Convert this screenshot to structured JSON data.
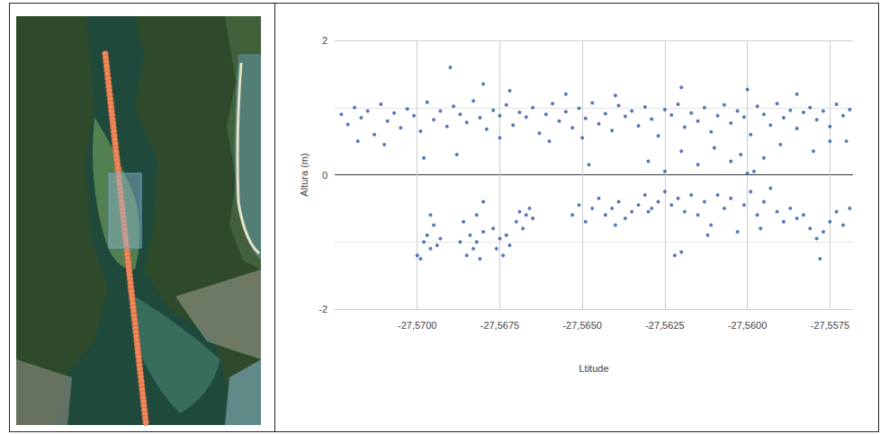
{
  "chart_data": {
    "type": "scatter",
    "x_label": "Ltitude",
    "y_label": "Altura (m)",
    "color": "#2a56a6",
    "marker": "circle",
    "grid": true,
    "xlim": [
      -27.5725,
      -27.5568
    ],
    "xticks": [
      {
        "value": -27.57,
        "label": "-27,5700"
      },
      {
        "value": -27.5675,
        "label": "-27,5675"
      },
      {
        "value": -27.565,
        "label": "-27,5650"
      },
      {
        "value": -27.5625,
        "label": "-27,5625"
      },
      {
        "value": -27.56,
        "label": "-27,5600"
      },
      {
        "value": -27.5575,
        "label": "-27,5575"
      }
    ],
    "ylim": [
      -2,
      2
    ],
    "yticks": [
      -2,
      0,
      2
    ],
    "x": [
      -27.5723,
      -27.5721,
      -27.5719,
      -27.5717,
      -27.5715,
      -27.5713,
      -27.5711,
      -27.5709,
      -27.5707,
      -27.5705,
      -27.5703,
      -27.5701,
      -27.5699,
      -27.5697,
      -27.5695,
      -27.5693,
      -27.5691,
      -27.5689,
      -27.5687,
      -27.5685,
      -27.5683,
      -27.5681,
      -27.5679,
      -27.5677,
      -27.5675,
      -27.5673,
      -27.5671,
      -27.5669,
      -27.5667,
      -27.5665,
      -27.5663,
      -27.5661,
      -27.5659,
      -27.5657,
      -27.5655,
      -27.5653,
      -27.5651,
      -27.5649,
      -27.5647,
      -27.5645,
      -27.5643,
      -27.5641,
      -27.5639,
      -27.5637,
      -27.5635,
      -27.5633,
      -27.5631,
      -27.5629,
      -27.5627,
      -27.5625,
      -27.5623,
      -27.5621,
      -27.5619,
      -27.5617,
      -27.5615,
      -27.5613,
      -27.5611,
      -27.5609,
      -27.5607,
      -27.5605,
      -27.5603,
      -27.5601,
      -27.5599,
      -27.5597,
      -27.5595,
      -27.5593,
      -27.5591,
      -27.5589,
      -27.5587,
      -27.5585,
      -27.5583,
      -27.5581,
      -27.5579,
      -27.5577,
      -27.5575,
      -27.5573,
      -27.5571,
      -27.5569,
      -27.569,
      -27.568,
      -27.5672,
      -27.5655,
      -27.564,
      -27.562,
      -27.56,
      -27.5585,
      -27.5718,
      -27.571,
      -27.5698,
      -27.5688,
      -27.5675,
      -27.566,
      -27.565,
      -27.5648,
      -27.563,
      -27.5625,
      -27.562,
      -27.5615,
      -27.561,
      -27.5605,
      -27.5602,
      -27.56,
      -27.5598,
      -27.5595,
      -27.559,
      -27.558,
      -27.5575,
      -27.557,
      -27.57,
      -27.5699,
      -27.5698,
      -27.5697,
      -27.5696,
      -27.5695,
      -27.5694,
      -27.5693,
      -27.5696,
      -27.5687,
      -27.5686,
      -27.5685,
      -27.5684,
      -27.5683,
      -27.5682,
      -27.5681,
      -27.568,
      -27.568,
      -27.5682,
      -27.5677,
      -27.5676,
      -27.5675,
      -27.5674,
      -27.5673,
      -27.5672,
      -27.567,
      -27.5669,
      -27.5668,
      -27.5667,
      -27.5666,
      -27.5665,
      -27.5653,
      -27.5651,
      -27.5649,
      -27.5647,
      -27.5645,
      -27.5643,
      -27.5641,
      -27.5639,
      -27.5637,
      -27.5635,
      -27.5633,
      -27.5631,
      -27.5629,
      -27.5627,
      -27.5625,
      -27.5623,
      -27.5621,
      -27.562,
      -27.5619,
      -27.5617,
      -27.5615,
      -27.5613,
      -27.5611,
      -27.5609,
      -27.5607,
      -27.5605,
      -27.5603,
      -27.5601,
      -27.5599,
      -27.5597,
      -27.5595,
      -27.5593,
      -27.5591,
      -27.5589,
      -27.5587,
      -27.5585,
      -27.5583,
      -27.5581,
      -27.5579,
      -27.5578,
      -27.5577,
      -27.5575,
      -27.5573,
      -27.5571,
      -27.5569,
      -27.5622,
      -27.5612,
      -27.5596,
      -27.564,
      -27.563
    ],
    "values": [
      0.9,
      0.75,
      1.0,
      0.85,
      0.95,
      0.6,
      1.05,
      0.8,
      0.92,
      0.7,
      0.98,
      0.88,
      0.65,
      1.08,
      0.82,
      0.95,
      0.72,
      1.02,
      0.9,
      0.78,
      1.1,
      0.85,
      0.68,
      0.96,
      0.88,
      1.04,
      0.74,
      0.93,
      0.86,
      1.0,
      0.62,
      0.9,
      1.06,
      0.8,
      0.94,
      0.7,
      0.99,
      0.84,
      1.07,
      0.76,
      0.91,
      0.66,
      1.03,
      0.87,
      0.95,
      0.73,
      1.01,
      0.83,
      0.58,
      0.97,
      0.89,
      1.05,
      0.71,
      0.92,
      0.8,
      1.0,
      0.64,
      0.88,
      1.04,
      0.77,
      0.95,
      0.86,
      0.6,
      1.02,
      0.9,
      0.74,
      1.06,
      0.85,
      0.96,
      0.69,
      0.93,
      1.0,
      0.82,
      0.95,
      0.72,
      1.05,
      0.88,
      0.97,
      1.6,
      1.35,
      1.25,
      1.2,
      1.18,
      1.3,
      1.27,
      1.2,
      0.5,
      0.45,
      0.25,
      0.3,
      0.55,
      0.5,
      0.55,
      0.15,
      0.2,
      0.05,
      0.35,
      0.15,
      0.4,
      0.2,
      0.3,
      0.02,
      0.05,
      0.25,
      0.45,
      0.35,
      0.5,
      0.5,
      -1.2,
      -1.25,
      -1.0,
      -0.9,
      -1.1,
      -0.75,
      -1.05,
      -0.95,
      -0.6,
      -1.0,
      -0.7,
      -1.2,
      -0.9,
      -1.1,
      -0.6,
      -1.25,
      -0.85,
      -0.4,
      -1.0,
      -0.8,
      -1.1,
      -0.95,
      -1.2,
      -0.9,
      -1.05,
      -0.7,
      -0.55,
      -0.8,
      -0.6,
      -0.5,
      -0.65,
      -0.6,
      -0.45,
      -0.7,
      -0.5,
      -0.35,
      -0.6,
      -0.5,
      -0.4,
      -0.65,
      -0.55,
      -0.45,
      -0.3,
      -0.5,
      -0.4,
      -0.25,
      -0.45,
      -0.35,
      -1.15,
      -0.55,
      -0.3,
      -0.6,
      -0.4,
      -0.75,
      -0.3,
      -0.5,
      -0.35,
      -0.85,
      -0.45,
      -0.25,
      -0.6,
      -0.4,
      -0.2,
      -0.55,
      -0.7,
      -0.5,
      -0.65,
      -0.6,
      -0.8,
      -0.95,
      -1.25,
      -0.85,
      -0.7,
      -0.55,
      -0.75,
      -0.5,
      -1.2,
      -0.9,
      -0.8,
      -0.75,
      -0.55
    ]
  }
}
